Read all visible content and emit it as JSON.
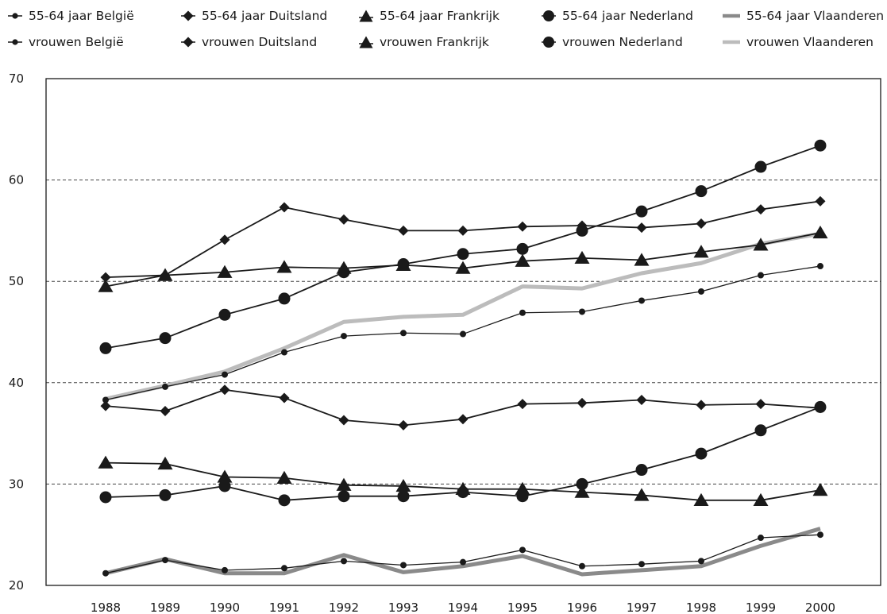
{
  "chart_data": {
    "type": "line",
    "title": "",
    "xlabel": "",
    "ylabel": "",
    "x": [
      "1988",
      "1989",
      "1990",
      "1991",
      "1992",
      "1993",
      "1994",
      "1995",
      "1996",
      "1997",
      "1998",
      "1999",
      "2000"
    ],
    "ylim": [
      20,
      70
    ],
    "yticks": [
      "20",
      "30",
      "40",
      "50",
      "60",
      "70"
    ],
    "grid": "horizontal dashed",
    "legend_position": "top",
    "series": [
      {
        "name": "55-64 jaar België",
        "marker": "small-dot",
        "color": "#1a1a1a",
        "values": [
          38.3,
          39.6,
          40.8,
          43.0,
          44.6,
          44.9,
          44.8,
          46.9,
          47.0,
          48.1,
          49.0,
          50.6,
          51.5
        ]
      },
      {
        "name": "55-64 jaar Duitsland",
        "marker": "diamond",
        "color": "#1a1a1a",
        "values": [
          50.4,
          50.6,
          54.1,
          57.3,
          56.1,
          55.0,
          55.0,
          55.4,
          55.5,
          55.3,
          55.7,
          57.1,
          57.9
        ]
      },
      {
        "name": "55-64 jaar Frankrijk",
        "marker": "triangle",
        "color": "#1a1a1a",
        "values": [
          49.5,
          50.6,
          50.9,
          51.4,
          51.3,
          51.6,
          51.3,
          52.0,
          52.3,
          52.1,
          52.9,
          53.6,
          54.8
        ]
      },
      {
        "name": "55-64 jaar Nederland",
        "marker": "circle",
        "color": "#1a1a1a",
        "values": [
          43.4,
          44.4,
          46.7,
          48.3,
          50.9,
          51.7,
          52.7,
          53.2,
          55.0,
          56.9,
          58.9,
          61.3,
          63.4
        ]
      },
      {
        "name": "55-64 jaar Vlaanderen",
        "marker": "none",
        "color": "#8a8a8a",
        "values": [
          null,
          null,
          null,
          null,
          null,
          null,
          null,
          null,
          null,
          null,
          null,
          null,
          null
        ]
      },
      {
        "name": "vrouwen België",
        "marker": "small-dot",
        "color": "#1a1a1a",
        "values": [
          21.2,
          22.5,
          21.5,
          21.7,
          22.4,
          22.0,
          22.3,
          23.5,
          21.9,
          22.1,
          22.4,
          24.7,
          25.0
        ]
      },
      {
        "name": "vrouwen Duitsland",
        "marker": "diamond",
        "color": "#1a1a1a",
        "values": [
          37.7,
          37.2,
          39.3,
          38.5,
          36.3,
          35.8,
          36.4,
          37.9,
          38.0,
          38.3,
          37.8,
          37.9,
          37.5
        ]
      },
      {
        "name": "vrouwen Frankrijk",
        "marker": "triangle",
        "color": "#1a1a1a",
        "values": [
          32.1,
          32.0,
          30.7,
          30.6,
          29.9,
          29.8,
          29.5,
          29.5,
          29.2,
          28.9,
          28.4,
          28.4,
          29.4
        ]
      },
      {
        "name": "vrouwen Nederland",
        "marker": "circle",
        "color": "#1a1a1a",
        "values": [
          28.7,
          28.9,
          29.8,
          28.4,
          28.8,
          28.8,
          29.2,
          28.8,
          30.0,
          31.4,
          33.0,
          35.3,
          37.6
        ]
      },
      {
        "name": "vrouwen Vlaanderen",
        "marker": "none",
        "color": "#bcbcbc",
        "values": [
          38.4,
          39.7,
          41.1,
          43.4,
          46.0,
          46.5,
          46.7,
          49.5,
          49.3,
          50.8,
          51.8,
          53.7,
          54.7
        ]
      },
      {
        "name": "55-64 jaar Vlaanderen (lower)",
        "marker": "none",
        "color": "#8a8a8a",
        "values": [
          21.2,
          22.6,
          21.2,
          21.2,
          23.0,
          21.3,
          21.9,
          22.9,
          21.1,
          21.5,
          21.9,
          23.9,
          25.6
        ]
      }
    ]
  },
  "legend": [
    {
      "label": "55-64 jaar België",
      "marker": "small-dot"
    },
    {
      "label": "55-64 jaar Duitsland",
      "marker": "diamond"
    },
    {
      "label": "55-64 jaar Frankrijk",
      "marker": "triangle"
    },
    {
      "label": "55-64 jaar Nederland",
      "marker": "circle"
    },
    {
      "label": "55-64 jaar Vlaanderen",
      "marker": "dark-gray-line"
    },
    {
      "label": "vrouwen België",
      "marker": "small-dot"
    },
    {
      "label": "vrouwen Duitsland",
      "marker": "diamond"
    },
    {
      "label": "vrouwen Frankrijk",
      "marker": "triangle"
    },
    {
      "label": "vrouwen Nederland",
      "marker": "circle"
    },
    {
      "label": "vrouwen Vlaanderen",
      "marker": "light-gray-line"
    }
  ]
}
